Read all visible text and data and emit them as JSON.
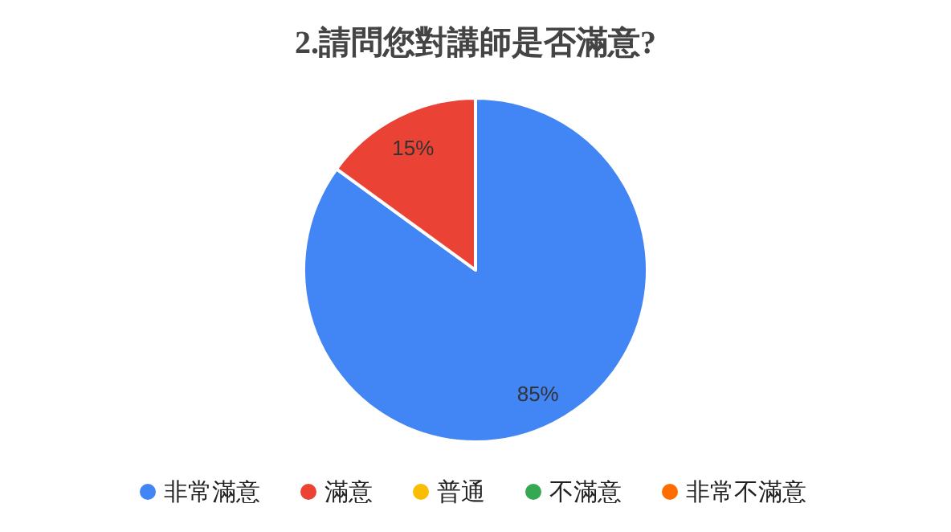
{
  "chart_data": {
    "type": "pie",
    "title": "2.請問您對講師是否滿意?",
    "categories": [
      "非常滿意",
      "滿意",
      "普通",
      "不滿意",
      "非常不滿意"
    ],
    "values": [
      85,
      15,
      0,
      0,
      0
    ],
    "colors": [
      "#4285f4",
      "#ea4335",
      "#fbbc04",
      "#34a853",
      "#ff6d01"
    ],
    "value_labels": [
      "85%",
      "15%",
      null,
      null,
      null
    ],
    "legend": "bottom"
  }
}
